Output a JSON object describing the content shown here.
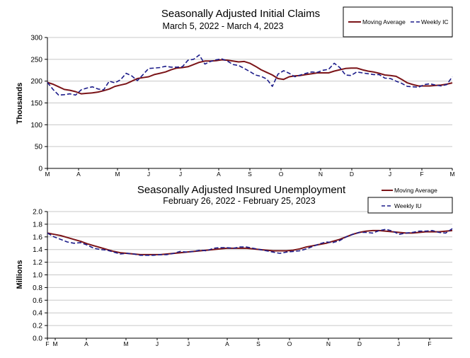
{
  "chart_data": [
    {
      "type": "line",
      "title": "Seasonally Adjusted Initial Claims",
      "subtitle": "March 5, 2022 - March 4, 2023",
      "ylabel": "Thousands",
      "xlabel": "",
      "ylim": [
        0,
        300
      ],
      "yticks": [
        "0",
        "50",
        "100",
        "150",
        "200",
        "250",
        "300"
      ],
      "x_month_labels": [
        "M",
        "A",
        "M",
        "J",
        "J",
        "A",
        "S",
        "O",
        "N",
        "D",
        "J",
        "F",
        "M"
      ],
      "grid": true,
      "legend": "top-right",
      "series": [
        {
          "name": "Moving Average",
          "color": "#7b1418",
          "style": "solid",
          "values": [
            197,
            193,
            187,
            181,
            179,
            176,
            171,
            172,
            173,
            175,
            178,
            182,
            188,
            191,
            194,
            200,
            206,
            208,
            210,
            215,
            218,
            221,
            226,
            230,
            231,
            233,
            238,
            243,
            246,
            246,
            247,
            249,
            248,
            246,
            244,
            245,
            241,
            234,
            226,
            220,
            214,
            206,
            204,
            210,
            212,
            213,
            215,
            217,
            219,
            219,
            219,
            223,
            226,
            229,
            230,
            230,
            226,
            223,
            221,
            218,
            214,
            213,
            211,
            204,
            196,
            192,
            189,
            189,
            189,
            190,
            191,
            193,
            196
          ]
        },
        {
          "name": "Weekly IC",
          "color": "#1c1c8a",
          "style": "dashed",
          "values": [
            197,
            181,
            168,
            169,
            171,
            168,
            180,
            184,
            187,
            182,
            180,
            200,
            196,
            203,
            218,
            212,
            201,
            215,
            229,
            230,
            231,
            234,
            232,
            232,
            233,
            248,
            250,
            260,
            239,
            245,
            249,
            251,
            246,
            238,
            236,
            229,
            222,
            214,
            211,
            205,
            188,
            216,
            224,
            218,
            210,
            214,
            218,
            221,
            220,
            225,
            227,
            241,
            231,
            214,
            213,
            221,
            219,
            217,
            215,
            215,
            207,
            206,
            200,
            195,
            188,
            187,
            186,
            192,
            194,
            191,
            189,
            192,
            210
          ]
        }
      ]
    },
    {
      "type": "line",
      "title": "Seasonally Adjusted Insured Unemployment",
      "subtitle": "February 26, 2022 - February 25, 2023",
      "ylabel": "Millions",
      "xlabel": "",
      "ylim": [
        0,
        2.0
      ],
      "yticks": [
        "0.0",
        "0.2",
        "0.4",
        "0.6",
        "0.8",
        "1.0",
        "1.2",
        "1.4",
        "1.6",
        "1.8",
        "2.0"
      ],
      "x_month_labels": [
        "F",
        "M",
        "A",
        "M",
        "J",
        "J",
        "A",
        "S",
        "O",
        "N",
        "D",
        "J",
        "F"
      ],
      "grid": true,
      "legend": "top-right",
      "series": [
        {
          "name": "Moving Average",
          "color": "#7b1418",
          "style": "solid",
          "values": [
            1.66,
            1.64,
            1.62,
            1.59,
            1.56,
            1.53,
            1.49,
            1.46,
            1.43,
            1.4,
            1.37,
            1.35,
            1.34,
            1.33,
            1.32,
            1.32,
            1.32,
            1.32,
            1.33,
            1.34,
            1.35,
            1.36,
            1.37,
            1.38,
            1.39,
            1.4,
            1.41,
            1.42,
            1.42,
            1.42,
            1.42,
            1.41,
            1.4,
            1.39,
            1.38,
            1.38,
            1.38,
            1.39,
            1.41,
            1.44,
            1.46,
            1.48,
            1.5,
            1.53,
            1.56,
            1.6,
            1.64,
            1.67,
            1.69,
            1.7,
            1.7,
            1.69,
            1.68,
            1.67,
            1.66,
            1.66,
            1.67,
            1.68,
            1.68,
            1.68,
            1.69,
            1.7
          ]
        },
        {
          "name": "Weekly IU",
          "color": "#1c1c8a",
          "style": "dashed",
          "values": [
            1.66,
            1.6,
            1.56,
            1.52,
            1.5,
            1.51,
            1.47,
            1.42,
            1.4,
            1.39,
            1.36,
            1.33,
            1.34,
            1.33,
            1.31,
            1.31,
            1.31,
            1.32,
            1.32,
            1.34,
            1.37,
            1.36,
            1.37,
            1.39,
            1.38,
            1.42,
            1.43,
            1.43,
            1.42,
            1.44,
            1.44,
            1.42,
            1.4,
            1.38,
            1.36,
            1.34,
            1.36,
            1.37,
            1.38,
            1.41,
            1.45,
            1.49,
            1.52,
            1.51,
            1.54,
            1.6,
            1.64,
            1.67,
            1.67,
            1.66,
            1.7,
            1.72,
            1.69,
            1.64,
            1.66,
            1.67,
            1.69,
            1.69,
            1.7,
            1.67,
            1.66,
            1.73
          ]
        }
      ]
    }
  ]
}
